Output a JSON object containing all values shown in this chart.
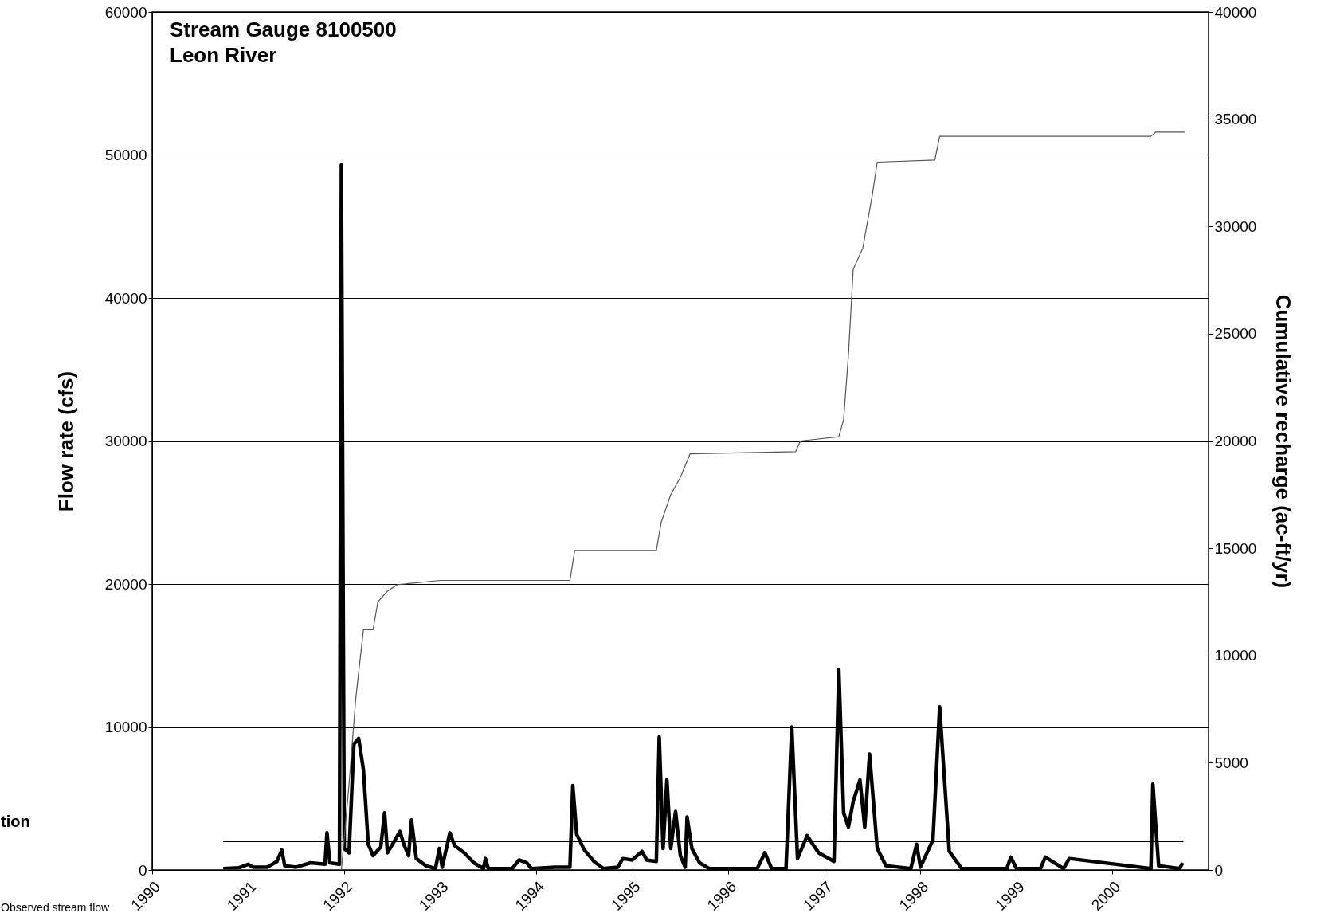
{
  "chart_data": {
    "type": "line",
    "title": "Stream Gauge 8100500",
    "subtitle": "Leon River",
    "ylabel": "Flow rate (cfs)",
    "y2label": "Cumulative recharge (ac-ft/yr)",
    "annotations": [
      "tion",
      "Observed stream flow"
    ],
    "xlim": [
      1990,
      2001
    ],
    "xticks": [
      1990,
      1991,
      1992,
      1993,
      1994,
      1995,
      1996,
      1997,
      1998,
      1999,
      2000
    ],
    "ylim": [
      0,
      60000
    ],
    "yticks": [
      0,
      10000,
      20000,
      30000,
      40000,
      50000,
      60000
    ],
    "y2lim": [
      0,
      40000
    ],
    "y2ticks": [
      0,
      5000,
      10000,
      15000,
      20000,
      25000,
      30000,
      35000,
      40000
    ],
    "grid": "y",
    "marker": "none",
    "line_style": "solid",
    "series": [
      {
        "color": "#000000",
        "x": [
          1990.74,
          1990.9,
          1991.0,
          1991.05,
          1991.2,
          1991.3,
          1991.35,
          1991.38,
          1991.5,
          1991.65,
          1991.8,
          1991.82,
          1991.85,
          1991.95,
          1991.97,
          1992.0,
          1992.05,
          1992.1,
          1992.15,
          1992.2,
          1992.25,
          1992.3,
          1992.38,
          1992.42,
          1992.45,
          1992.52,
          1992.58,
          1992.62,
          1992.67,
          1992.7,
          1992.75,
          1992.85,
          1992.95,
          1992.99,
          1993.02,
          1993.1,
          1993.15,
          1993.25,
          1993.35,
          1993.45,
          1993.47,
          1993.5,
          1993.75,
          1993.82,
          1993.9,
          1993.95,
          1994.2,
          1994.35,
          1994.38,
          1994.42,
          1994.5,
          1994.6,
          1994.7,
          1994.85,
          1994.9,
          1995.0,
          1995.1,
          1995.15,
          1995.25,
          1995.28,
          1995.32,
          1995.36,
          1995.4,
          1995.45,
          1995.5,
          1995.55,
          1995.57,
          1995.62,
          1995.7,
          1995.8,
          1996.3,
          1996.38,
          1996.45,
          1996.6,
          1996.66,
          1996.72,
          1996.82,
          1996.94,
          1997.1,
          1997.15,
          1997.2,
          1997.25,
          1997.3,
          1997.37,
          1997.42,
          1997.47,
          1997.55,
          1997.64,
          1997.9,
          1997.96,
          1998.0,
          1998.13,
          1998.2,
          1998.3,
          1998.43,
          1998.9,
          1998.94,
          1999.0,
          1999.25,
          1999.3,
          1999.49,
          1999.55,
          2000.4,
          2000.42,
          2000.48,
          2000.7,
          2000.73
        ],
        "values": [
          100,
          150,
          400,
          200,
          200,
          600,
          1400,
          300,
          200,
          500,
          400,
          2600,
          500,
          400,
          49300,
          1500,
          1200,
          8800,
          9200,
          7000,
          1800,
          1000,
          1600,
          4000,
          1200,
          2000,
          2700,
          1800,
          1000,
          3500,
          800,
          300,
          100,
          1500,
          200,
          2600,
          1700,
          1200,
          500,
          100,
          800,
          100,
          100,
          700,
          500,
          100,
          200,
          200,
          5900,
          2500,
          1400,
          600,
          100,
          200,
          800,
          700,
          1300,
          700,
          600,
          9300,
          1500,
          6300,
          1500,
          4100,
          1000,
          200,
          3700,
          1500,
          500,
          100,
          100,
          1200,
          100,
          100,
          10000,
          800,
          2400,
          1200,
          600,
          14000,
          4000,
          3000,
          4800,
          6300,
          3000,
          8100,
          1500,
          300,
          100,
          1800,
          200,
          2100,
          11400,
          1300,
          100,
          100,
          900,
          100,
          100,
          900,
          100,
          800,
          100,
          6000,
          300,
          100,
          500
        ]
      },
      {
        "color": "#000000",
        "x": [
          1990.74,
          2000.74
        ],
        "values": [
          2000,
          2000
        ]
      },
      {
        "color": "#555555",
        "axis": "y2",
        "x": [
          1990.74,
          1991.97,
          1992.05,
          1992.12,
          1992.2,
          1992.3,
          1992.35,
          1992.45,
          1992.55,
          1993.0,
          1994.35,
          1994.4,
          1995.25,
          1995.3,
          1995.4,
          1995.5,
          1995.6,
          1996.7,
          1996.75,
          1997.15,
          1997.2,
          1997.25,
          1997.3,
          1997.4,
          1997.5,
          1997.55,
          1998.15,
          1998.2,
          2000.4,
          2000.45,
          2000.75
        ],
        "values": [
          0,
          0,
          4000,
          8000,
          11200,
          11200,
          12500,
          13000,
          13300,
          13500,
          13500,
          14900,
          14900,
          16200,
          17500,
          18300,
          19400,
          19500,
          20000,
          20200,
          21000,
          24000,
          28000,
          29000,
          31500,
          33000,
          33100,
          34200,
          34200,
          34400,
          34400
        ]
      }
    ]
  }
}
